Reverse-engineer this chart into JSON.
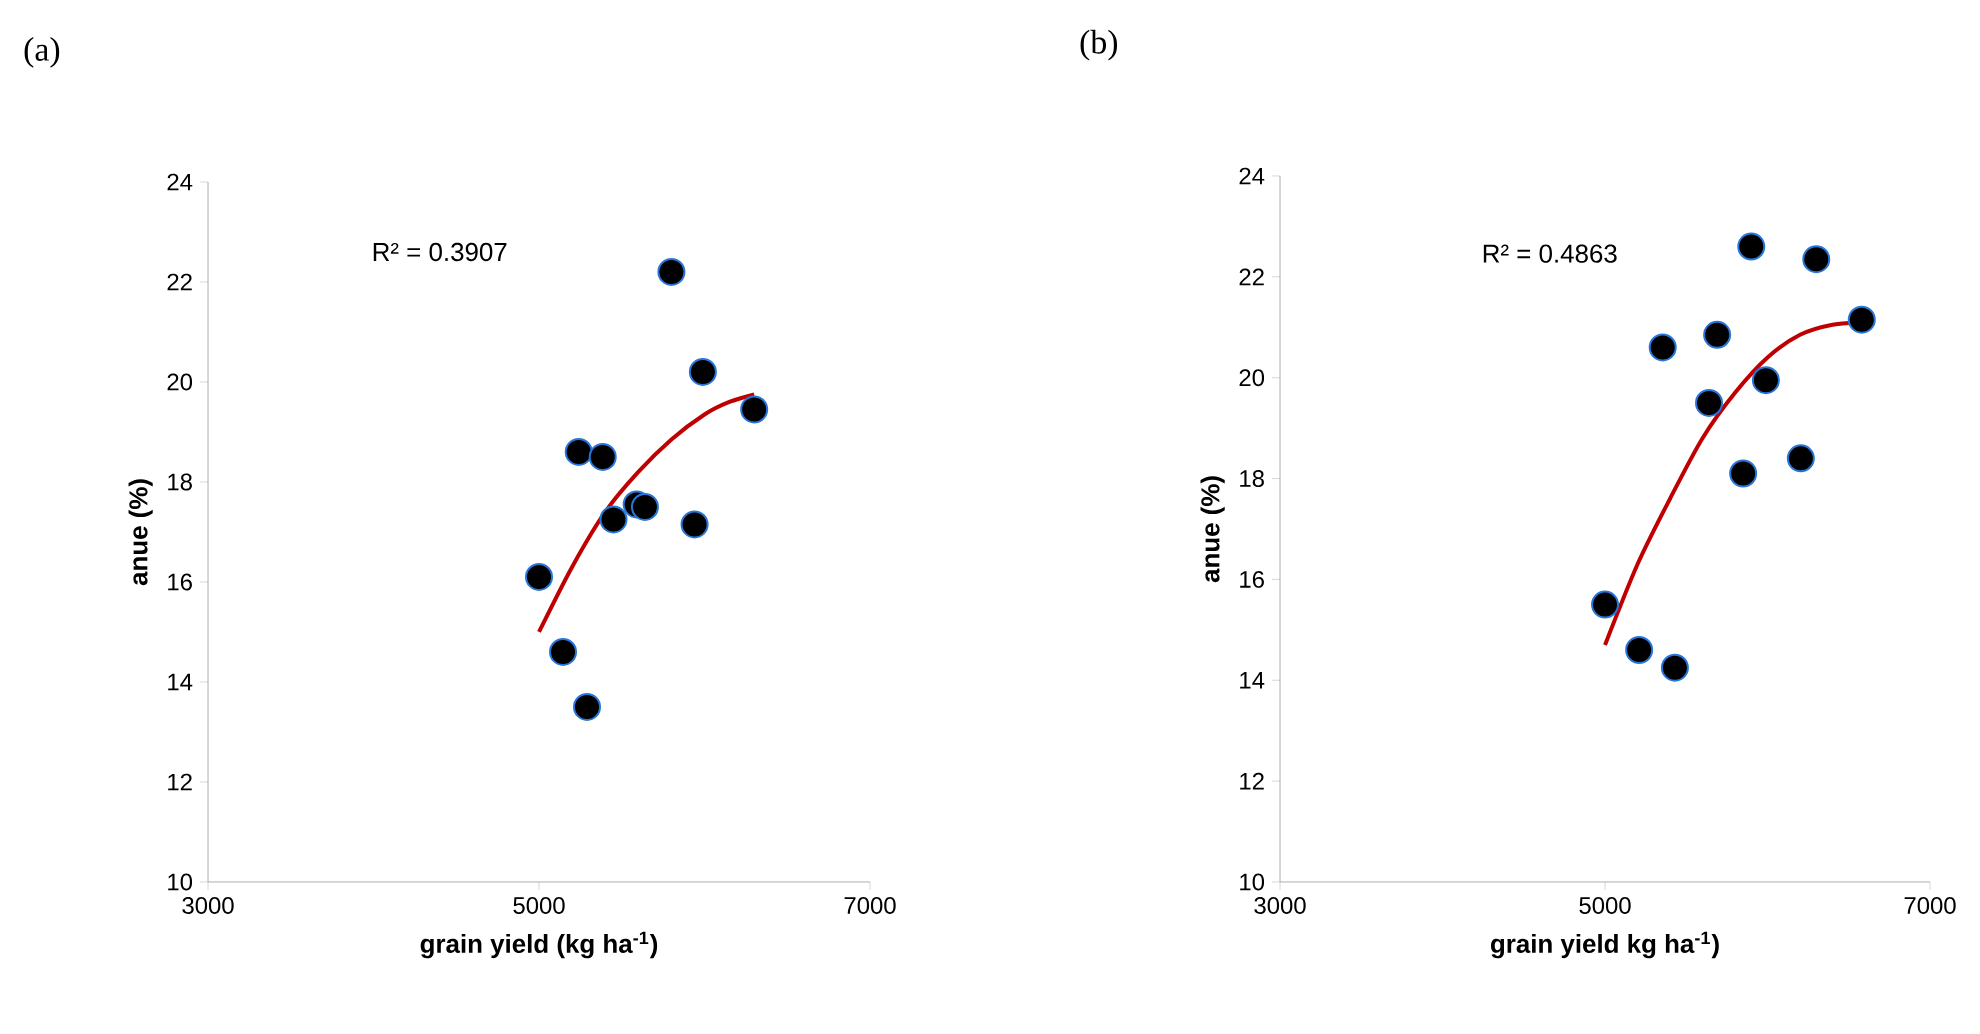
{
  "chart_data": [
    {
      "type": "scatter",
      "title": "(a)",
      "xlabel": "grain yield (kg ha$^{-1}$)",
      "ylabel": "anue (%)",
      "xlim": [
        3000,
        7000
      ],
      "xticks": [
        3000,
        5000,
        7000
      ],
      "ylim": [
        10,
        24
      ],
      "yticks": [
        10,
        12,
        14,
        16,
        18,
        20,
        22,
        24
      ],
      "annotations": [
        "R² = 0.3907"
      ],
      "grid": false,
      "series": [
        {
          "marker": "circle",
          "color": "#000000",
          "x": [
            5000,
            5145,
            5290,
            5240,
            5385,
            5450,
            5590,
            5640,
            5940,
            5800,
            5990,
            6300
          ],
          "values": [
            16.1,
            14.6,
            13.5,
            18.6,
            18.5,
            17.25,
            17.55,
            17.5,
            17.15,
            22.2,
            20.2,
            19.45
          ]
        },
        {
          "type": "line",
          "color": "#c00000",
          "x": [
            5000,
            5200,
            5400,
            5600,
            5800,
            6000,
            6150,
            6300
          ],
          "values": [
            15.0,
            16.3,
            17.4,
            18.2,
            18.85,
            19.35,
            19.6,
            19.75
          ]
        }
      ]
    },
    {
      "type": "scatter",
      "title": "(b)",
      "xlabel": "grain yield kg ha$^{-1}$)",
      "ylabel": "anue (%)",
      "xlim": [
        3000,
        7000
      ],
      "xticks": [
        3000,
        5000,
        7000
      ],
      "ylim": [
        10,
        24
      ],
      "yticks": [
        10,
        12,
        14,
        16,
        18,
        20,
        22,
        24
      ],
      "annotations": [
        "R² = 0.4863"
      ],
      "grid": false,
      "series": [
        {
          "marker": "circle",
          "color": "#000000",
          "x": [
            5000,
            5210,
            5430,
            5355,
            5690,
            5640,
            5990,
            5850,
            6205,
            5900,
            6300,
            6580
          ],
          "values": [
            15.5,
            14.6,
            14.25,
            20.6,
            20.85,
            19.5,
            19.95,
            18.1,
            18.4,
            22.6,
            22.35,
            21.15
          ]
        },
        {
          "type": "line",
          "color": "#c00000",
          "x": [
            5000,
            5200,
            5400,
            5600,
            5800,
            6000,
            6200,
            6400,
            6600
          ],
          "values": [
            14.7,
            16.3,
            17.6,
            18.8,
            19.7,
            20.4,
            20.85,
            21.05,
            21.1
          ]
        }
      ]
    }
  ]
}
